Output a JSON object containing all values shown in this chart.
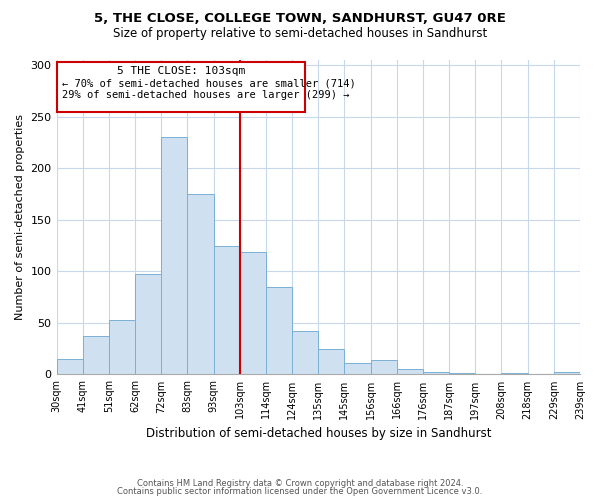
{
  "title": "5, THE CLOSE, COLLEGE TOWN, SANDHURST, GU47 0RE",
  "subtitle": "Size of property relative to semi-detached houses in Sandhurst",
  "xlabel": "Distribution of semi-detached houses by size in Sandhurst",
  "ylabel": "Number of semi-detached properties",
  "bar_labels": [
    "30sqm",
    "41sqm",
    "51sqm",
    "62sqm",
    "72sqm",
    "83sqm",
    "93sqm",
    "103sqm",
    "114sqm",
    "124sqm",
    "135sqm",
    "145sqm",
    "156sqm",
    "166sqm",
    "176sqm",
    "187sqm",
    "197sqm",
    "208sqm",
    "218sqm",
    "229sqm",
    "239sqm"
  ],
  "bar_values": [
    15,
    37,
    53,
    97,
    230,
    175,
    125,
    119,
    85,
    42,
    25,
    11,
    14,
    5,
    2,
    1,
    0,
    1,
    0,
    2
  ],
  "bar_color": "#cfe0f0",
  "bar_edge_color": "#7ab0d4",
  "highlight_index": 7,
  "highlight_line_color": "#cc0000",
  "annotation_title": "5 THE CLOSE: 103sqm",
  "annotation_line1": "← 70% of semi-detached houses are smaller (714)",
  "annotation_line2": "29% of semi-detached houses are larger (299) →",
  "annotation_box_edge": "#cc0000",
  "ylim": [
    0,
    305
  ],
  "yticks": [
    0,
    50,
    100,
    150,
    200,
    250,
    300
  ],
  "footer1": "Contains HM Land Registry data © Crown copyright and database right 2024.",
  "footer2": "Contains public sector information licensed under the Open Government Licence v3.0.",
  "background_color": "#ffffff",
  "grid_color": "#c8d8e8"
}
